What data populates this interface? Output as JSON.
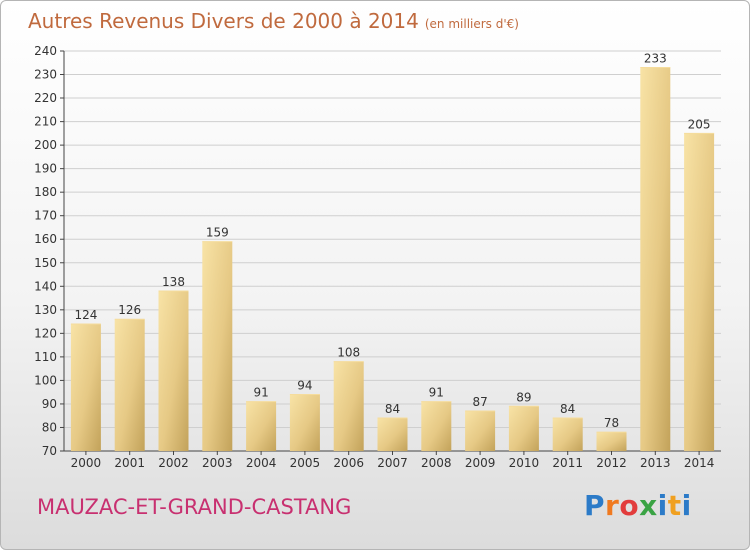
{
  "title": "Autres Revenus Divers de 2000 à 2014",
  "unit_note": "(en milliers d'€)",
  "location": "MAUZAC-ET-GRAND-CASTANG",
  "brand": {
    "letters": [
      "P",
      "r",
      "o",
      "x",
      "i",
      "t",
      "i"
    ],
    "colors": [
      "#2c7bc8",
      "#f07a20",
      "#e23c3c",
      "#3aa344",
      "#2c7bc8",
      "#f0a020",
      "#2c7bc8"
    ]
  },
  "colors": {
    "bar_light": "#f6dfa0",
    "bar_dark": "#c8a860",
    "grid": "#cfcfcf",
    "title": "#c06a3e",
    "location": "#c83070"
  },
  "chart_data": {
    "type": "bar",
    "categories": [
      "2000",
      "2001",
      "2002",
      "2003",
      "2004",
      "2005",
      "2006",
      "2007",
      "2008",
      "2009",
      "2010",
      "2011",
      "2012",
      "2013",
      "2014"
    ],
    "values": [
      124,
      126,
      138,
      159,
      91,
      94,
      108,
      84,
      91,
      87,
      89,
      84,
      78,
      233,
      205
    ],
    "ylim": [
      70,
      240
    ],
    "yticks": [
      70,
      80,
      90,
      100,
      110,
      120,
      130,
      140,
      150,
      160,
      170,
      180,
      190,
      200,
      210,
      220,
      230,
      240
    ],
    "grid": true,
    "xlabel": "",
    "ylabel": ""
  }
}
